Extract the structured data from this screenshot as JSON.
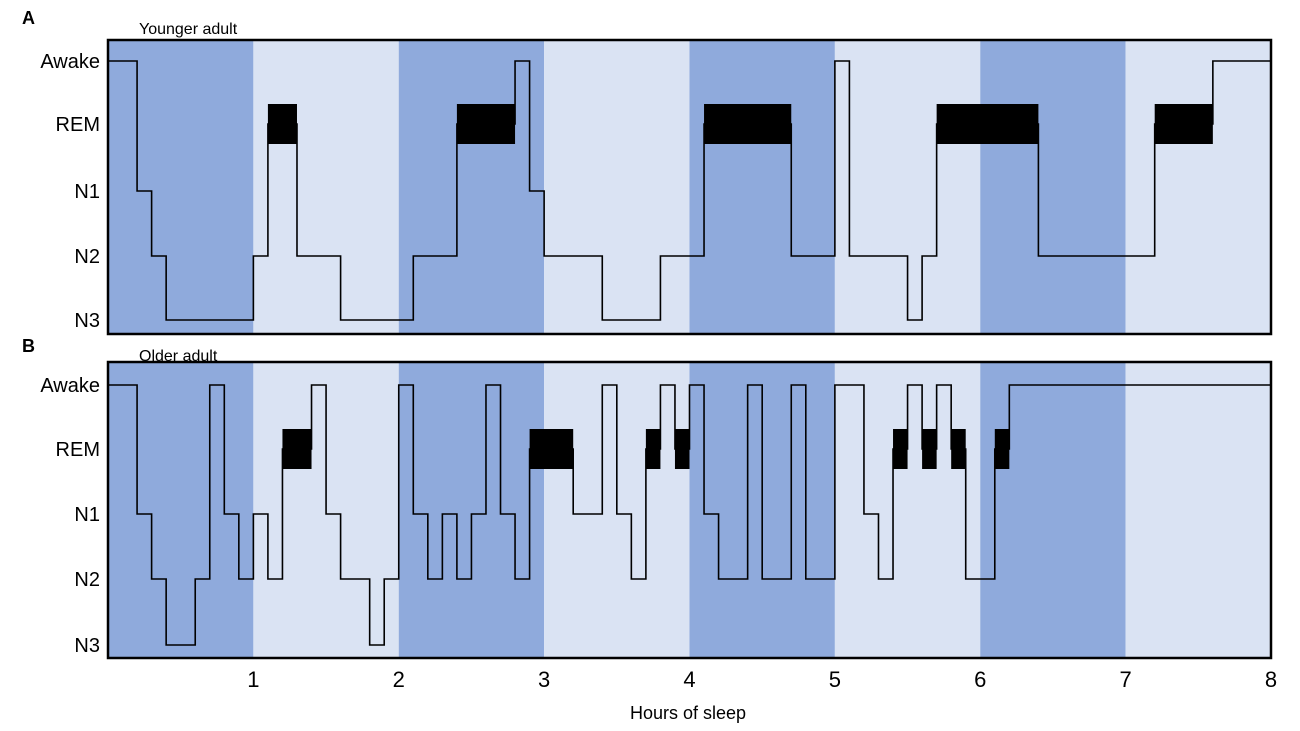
{
  "chart_data": [
    {
      "type": "line",
      "panel": "A",
      "title": "Younger adult",
      "xlabel": "",
      "xlim": [
        0,
        8
      ],
      "stages": [
        "Awake",
        "REM",
        "N1",
        "N2",
        "N3"
      ],
      "band_colors": [
        "#8faadc",
        "#dae3f3"
      ],
      "line_color": "#000000",
      "rem_color": "#000000",
      "steps": [
        [
          0.0,
          "Awake"
        ],
        [
          0.2,
          "N1"
        ],
        [
          0.3,
          "N2"
        ],
        [
          0.4,
          "N3"
        ],
        [
          1.0,
          "N2"
        ],
        [
          1.1,
          "REM"
        ],
        [
          1.3,
          "N2"
        ],
        [
          1.6,
          "N3"
        ],
        [
          2.1,
          "N2"
        ],
        [
          2.4,
          "REM"
        ],
        [
          2.8,
          "Awake"
        ],
        [
          2.9,
          "N1"
        ],
        [
          3.0,
          "N2"
        ],
        [
          3.4,
          "N3"
        ],
        [
          3.8,
          "N2"
        ],
        [
          4.1,
          "REM"
        ],
        [
          4.7,
          "N2"
        ],
        [
          5.0,
          "Awake"
        ],
        [
          5.1,
          "N2"
        ],
        [
          5.5,
          "N3"
        ],
        [
          5.6,
          "N2"
        ],
        [
          5.7,
          "REM"
        ],
        [
          6.4,
          "N2"
        ],
        [
          7.0,
          "N2"
        ],
        [
          7.2,
          "REM"
        ],
        [
          7.6,
          "Awake"
        ],
        [
          8.0,
          "Awake"
        ]
      ]
    },
    {
      "type": "line",
      "panel": "B",
      "title": "Older adult",
      "xlabel": "Hours of sleep",
      "xlim": [
        0,
        8
      ],
      "xticks": [
        "1",
        "2",
        "3",
        "4",
        "5",
        "6",
        "7",
        "8"
      ],
      "stages": [
        "Awake",
        "REM",
        "N1",
        "N2",
        "N3"
      ],
      "band_colors": [
        "#8faadc",
        "#dae3f3"
      ],
      "line_color": "#000000",
      "rem_color": "#000000",
      "steps": [
        [
          0.0,
          "Awake"
        ],
        [
          0.2,
          "N1"
        ],
        [
          0.3,
          "N2"
        ],
        [
          0.4,
          "N3"
        ],
        [
          0.6,
          "N2"
        ],
        [
          0.7,
          "Awake"
        ],
        [
          0.8,
          "N1"
        ],
        [
          0.9,
          "N2"
        ],
        [
          1.0,
          "N1"
        ],
        [
          1.1,
          "N2"
        ],
        [
          1.2,
          "REM"
        ],
        [
          1.4,
          "Awake"
        ],
        [
          1.5,
          "N1"
        ],
        [
          1.6,
          "N2"
        ],
        [
          1.8,
          "N3"
        ],
        [
          1.9,
          "N2"
        ],
        [
          2.0,
          "Awake"
        ],
        [
          2.1,
          "N1"
        ],
        [
          2.2,
          "N2"
        ],
        [
          2.3,
          "N1"
        ],
        [
          2.4,
          "N2"
        ],
        [
          2.5,
          "N1"
        ],
        [
          2.6,
          "Awake"
        ],
        [
          2.7,
          "N1"
        ],
        [
          2.8,
          "N2"
        ],
        [
          2.9,
          "REM"
        ],
        [
          3.2,
          "N1"
        ],
        [
          3.4,
          "Awake"
        ],
        [
          3.5,
          "N1"
        ],
        [
          3.6,
          "N2"
        ],
        [
          3.7,
          "REM"
        ],
        [
          3.8,
          "Awake"
        ],
        [
          3.9,
          "REM"
        ],
        [
          4.0,
          "Awake"
        ],
        [
          4.1,
          "N1"
        ],
        [
          4.2,
          "N2"
        ],
        [
          4.4,
          "Awake"
        ],
        [
          4.5,
          "N2"
        ],
        [
          4.7,
          "Awake"
        ],
        [
          4.8,
          "N2"
        ],
        [
          5.0,
          "Awake"
        ],
        [
          5.2,
          "N1"
        ],
        [
          5.3,
          "N2"
        ],
        [
          5.4,
          "REM"
        ],
        [
          5.5,
          "Awake"
        ],
        [
          5.6,
          "REM"
        ],
        [
          5.7,
          "Awake"
        ],
        [
          5.8,
          "REM"
        ],
        [
          5.9,
          "N2"
        ],
        [
          6.1,
          "REM"
        ],
        [
          6.2,
          "Awake"
        ],
        [
          8.0,
          "Awake"
        ]
      ]
    }
  ]
}
